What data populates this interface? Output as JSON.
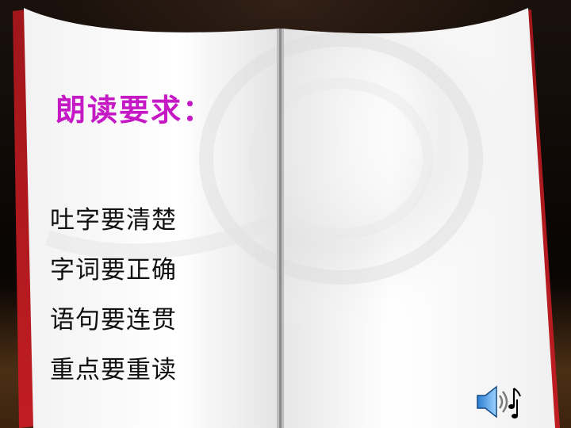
{
  "title": "朗读要求：",
  "requirements": [
    "吐字要清楚",
    "字词要正确",
    "语句要连贯",
    "重点要重读"
  ],
  "icons": {
    "sound": "speaker-music-icon"
  },
  "colors": {
    "title": "#c619c6",
    "text": "#111111",
    "page": "#ffffff",
    "cover": "#b0141a",
    "background": "#0b0605"
  }
}
